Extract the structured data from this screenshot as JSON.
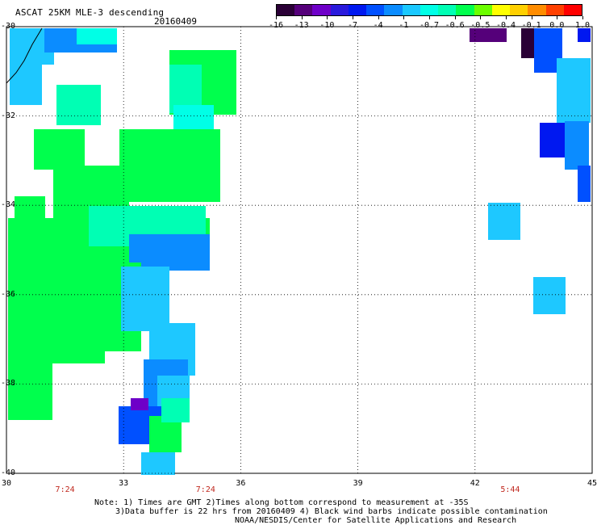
{
  "header": {
    "title": "ASCAT 25KM MLE-3 descending",
    "date": "20160409"
  },
  "colorbar": {
    "labels": [
      "-16",
      "-13",
      "-10",
      "-7",
      "-4",
      "-1",
      "-0.7",
      "-0.6",
      "-0.5",
      "-0.4",
      "-0.1",
      "0.0",
      "1.0"
    ],
    "colors": [
      "#2a0036",
      "#55007a",
      "#6e00c8",
      "#2a1adc",
      "#0018f0",
      "#0050ff",
      "#0b8cff",
      "#1ac8ff",
      "#00ffe6",
      "#00ffb4",
      "#00ff4d",
      "#6cff00",
      "#ffff00",
      "#ffd000",
      "#ff8c00",
      "#ff4000",
      "#ff0000"
    ]
  },
  "map": {
    "lon_ticks": [
      "30",
      "33",
      "36",
      "39",
      "42",
      "45"
    ],
    "lat_ticks": [
      "-30",
      "-32",
      "-34",
      "-36",
      "-38",
      "-40"
    ],
    "pass_times": [
      {
        "text": "7:24",
        "lon": 31.5
      },
      {
        "text": "7:24",
        "lon": 35.1
      },
      {
        "text": "5:44",
        "lon": 42.9
      }
    ]
  },
  "notes": {
    "line1": "Note: 1) Times are GMT 2)Times along bottom correspond to measurement at -35S",
    "line2": "3)Data buffer is 22 hrs from 20160409 4) Black wind barbs indicate possible contamination",
    "line3": "NOAA/NESDIS/Center for Satellite Applications and Research"
  }
}
